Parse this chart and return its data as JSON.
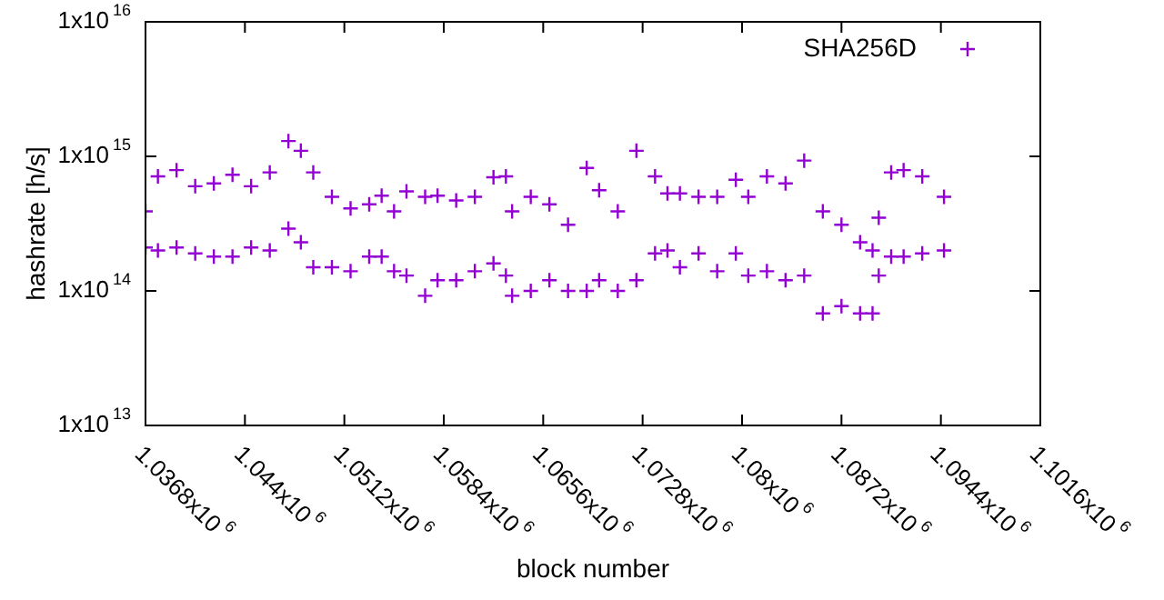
{
  "chart_data": {
    "type": "scatter",
    "xlabel": "block number",
    "ylabel": "hashrate [h/s]",
    "log": "y",
    "marker": "cross",
    "grid": false,
    "legend": "top right",
    "xlim": [
      1036800,
      1101600
    ],
    "xticks": [
      {
        "value": 1036800,
        "label": "1.0368x10$^{6}$"
      },
      {
        "value": 1044000,
        "label": "1.044x10$^{6}$"
      },
      {
        "value": 1051200,
        "label": "1.0512x10$^{6}$"
      },
      {
        "value": 1058400,
        "label": "1.0584x10$^{6}$"
      },
      {
        "value": 1065600,
        "label": "1.0656x10$^{6}$"
      },
      {
        "value": 1072800,
        "label": "1.0728x10$^{6}$"
      },
      {
        "value": 1080000,
        "label": "1.08x10$^{6}$"
      },
      {
        "value": 1087200,
        "label": "1.0872x10$^{6}$"
      },
      {
        "value": 1094400,
        "label": "1.0944x10$^{6}$"
      },
      {
        "value": 1101600,
        "label": "1.1016x10$^{6}$"
      }
    ],
    "ylim": [
      10000000000000.0,
      1e+16
    ],
    "yticks": [
      {
        "value": 10000000000000.0,
        "label": "1x10$^{13}$"
      },
      {
        "value": 100000000000000.0,
        "label": "1x10$^{14}$"
      },
      {
        "value": 1000000000000000.0,
        "label": "1x10$^{15}$"
      },
      {
        "value": 1e+16,
        "label": "1x10$^{16}$"
      }
    ],
    "series": [
      {
        "name": "SHA256D",
        "color": "#9400d3",
        "x": [
          1036800,
          1036800,
          1037700,
          1037700,
          1039050,
          1039050,
          1040400,
          1040400,
          1041750,
          1041750,
          1043100,
          1043100,
          1044450,
          1044450,
          1045800,
          1045800,
          1047150,
          1047150,
          1048050,
          1048050,
          1048950,
          1048950,
          1050300,
          1050300,
          1051650,
          1051650,
          1053000,
          1053000,
          1053900,
          1053900,
          1054800,
          1054800,
          1055700,
          1055700,
          1057050,
          1057050,
          1057950,
          1057950,
          1059300,
          1059300,
          1060650,
          1060650,
          1062000,
          1062000,
          1062900,
          1062900,
          1063350,
          1063350,
          1064700,
          1064700,
          1066050,
          1066050,
          1067400,
          1067400,
          1068750,
          1068750,
          1069650,
          1069650,
          1071000,
          1071000,
          1072350,
          1072350,
          1073700,
          1073700,
          1074600,
          1074600,
          1075500,
          1075500,
          1076850,
          1076850,
          1078200,
          1078200,
          1079550,
          1079550,
          1080450,
          1080450,
          1081800,
          1081800,
          1083150,
          1083150,
          1084500,
          1084500,
          1085850,
          1085850,
          1087200,
          1087200,
          1088550,
          1088550,
          1089450,
          1089450,
          1089900,
          1089900,
          1090800,
          1090800,
          1091700,
          1091700,
          1093050,
          1093050,
          1094625,
          1094625
        ],
        "values": [
          390000000000000.0,
          210000000000000.0,
          710000000000000.0,
          200000000000000.0,
          790000000000000.0,
          210000000000000.0,
          600000000000000.0,
          190000000000000.0,
          630000000000000.0,
          180000000000000.0,
          730000000000000.0,
          180000000000000.0,
          600000000000000.0,
          210000000000000.0,
          760000000000000.0,
          200000000000000.0,
          1300000000000000.0,
          290000000000000.0,
          1100000000000000.0,
          230000000000000.0,
          760000000000000.0,
          150000000000000.0,
          500000000000000.0,
          150000000000000.0,
          410000000000000.0,
          140000000000000.0,
          440000000000000.0,
          180000000000000.0,
          510000000000000.0,
          180000000000000.0,
          390000000000000.0,
          140000000000000.0,
          550000000000000.0,
          130000000000000.0,
          500000000000000.0,
          92000000000000.0,
          510000000000000.0,
          120000000000000.0,
          470000000000000.0,
          120000000000000.0,
          500000000000000.0,
          140000000000000.0,
          700000000000000.0,
          160000000000000.0,
          710000000000000.0,
          130000000000000.0,
          390000000000000.0,
          92000000000000.0,
          500000000000000.0,
          100000000000000.0,
          440000000000000.0,
          120000000000000.0,
          310000000000000.0,
          100000000000000.0,
          820000000000000.0,
          100000000000000.0,
          560000000000000.0,
          120000000000000.0,
          390000000000000.0,
          100000000000000.0,
          1100000000000000.0,
          120000000000000.0,
          710000000000000.0,
          190000000000000.0,
          530000000000000.0,
          200000000000000.0,
          530000000000000.0,
          150000000000000.0,
          500000000000000.0,
          190000000000000.0,
          500000000000000.0,
          140000000000000.0,
          670000000000000.0,
          190000000000000.0,
          500000000000000.0,
          130000000000000.0,
          710000000000000.0,
          140000000000000.0,
          630000000000000.0,
          120000000000000.0,
          930000000000000.0,
          130000000000000.0,
          390000000000000.0,
          68000000000000.0,
          310000000000000.0,
          77000000000000.0,
          230000000000000.0,
          68000000000000.0,
          200000000000000.0,
          68000000000000.0,
          350000000000000.0,
          130000000000000.0,
          760000000000000.0,
          180000000000000.0,
          790000000000000.0,
          180000000000000.0,
          710000000000000.0,
          190000000000000.0,
          500000000000000.0,
          200000000000000.0
        ]
      }
    ]
  }
}
